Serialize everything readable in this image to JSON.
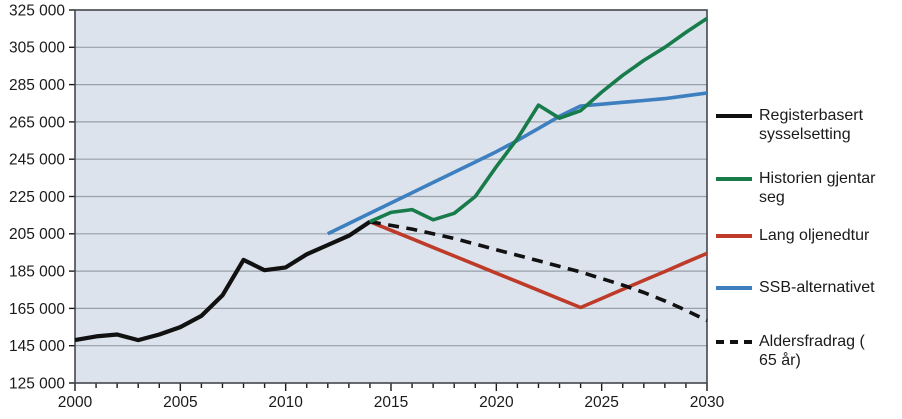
{
  "chart_data": {
    "type": "line",
    "title": "",
    "xlabel": "",
    "ylabel": "",
    "x_range": [
      2000,
      2030
    ],
    "y_range": [
      125000,
      325000
    ],
    "y_tick_step": 20000,
    "x_major_tick_step": 5,
    "x_minor_tick_step": 1,
    "grid": true,
    "legend_position": "right",
    "plot_bg_color": "#dce3ed",
    "grid_color": "#98a0aa",
    "border_color": "#43474c",
    "text_color": "#1a1a1a",
    "series": [
      {
        "name": "Registerbasert sysselsetting",
        "color": "#111111",
        "style": "solid",
        "line_width": 4.2,
        "x_start": 2000,
        "x_step": 1,
        "values": [
          148000,
          150000,
          151000,
          148000,
          151000,
          155000,
          161000,
          172000,
          191000,
          185500,
          187000,
          194000,
          199000,
          204000,
          211500
        ]
      },
      {
        "name": "Historien gjentar seg",
        "color": "#177b4a",
        "style": "solid",
        "line_width": 3.6,
        "x_start": 2014,
        "x_step": 1,
        "values": [
          211500,
          216500,
          218000,
          212500,
          216000,
          225000,
          241000,
          256000,
          274000,
          267000,
          271000,
          281000,
          290000,
          298000,
          305000,
          313000,
          320500
        ]
      },
      {
        "name": "Lang oljenedtur",
        "color": "#be3b29",
        "style": "solid",
        "line_width": 3.6,
        "x_start": 2014,
        "x_step": 1,
        "values": [
          211500,
          206900,
          202300,
          197700,
          193100,
          188500,
          183900,
          179300,
          174700,
          170100,
          165500,
          170300,
          175200,
          180000,
          184800,
          189700,
          194500
        ]
      },
      {
        "name": "SSB-alternativet",
        "color": "#3e7fbf",
        "style": "solid",
        "line_width": 3.6,
        "x_start": 2012,
        "x_step": 1,
        "values": [
          205000,
          210500,
          216000,
          221500,
          227000,
          232500,
          238000,
          243500,
          249000,
          255000,
          261500,
          268000,
          273500,
          274500,
          275500,
          276500,
          277500,
          279000,
          280500
        ]
      },
      {
        "name": "Aldersfradrag ( 65 år)",
        "color": "#111111",
        "style": "dashed",
        "line_width": 3.6,
        "x_start": 2014,
        "x_step": 1,
        "values": [
          211500,
          209500,
          207500,
          205000,
          202500,
          199500,
          196500,
          193500,
          190500,
          187500,
          184500,
          181000,
          177500,
          173500,
          169000,
          164000,
          158500
        ]
      }
    ]
  },
  "legend": {
    "item_tops": [
      106,
      169,
      226,
      278,
      332
    ]
  }
}
